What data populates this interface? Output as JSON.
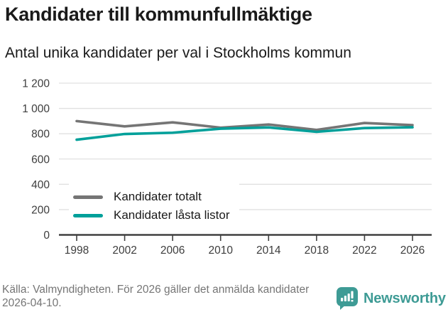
{
  "header": {
    "title": "Kandidater till kommunfullmäktige",
    "subtitle": "Antal unika kandidater per val i Stockholms kommun"
  },
  "chart_data": {
    "type": "line",
    "x": [
      1998,
      2002,
      2006,
      2010,
      2014,
      2018,
      2022,
      2026
    ],
    "xtick_labels": [
      "1998",
      "2002",
      "2006",
      "2010",
      "2014",
      "2018",
      "2022",
      "2026"
    ],
    "series": [
      {
        "name": "Kandidater totalt",
        "color": "#757575",
        "values": [
          900,
          858,
          890,
          848,
          873,
          830,
          885,
          868
        ]
      },
      {
        "name": "Kandidater låsta listor",
        "color": "#00A09A",
        "values": [
          753,
          798,
          808,
          840,
          850,
          815,
          845,
          851
        ]
      }
    ],
    "ylim": [
      0,
      1200
    ],
    "yticks": [
      0,
      200,
      400,
      600,
      800,
      1000,
      1200
    ],
    "ytick_labels": [
      "0",
      "200",
      "400",
      "600",
      "800",
      "1 000",
      "1 200"
    ],
    "grid": true,
    "legend_position": "inside-bottom-left",
    "title": "Kandidater till kommunfullmäktige",
    "xlabel": "",
    "ylabel": ""
  },
  "footer": {
    "source": "Källa: Valmyndigheten. För 2026 gäller det anmälda kandidater 2026-04-10.",
    "brand": "Newsworthy",
    "brand_color": "#3E9B95"
  },
  "colors": {
    "grid": "#e0e0e0",
    "axis": "#404040",
    "tick_label": "#3d3d3d",
    "footer_text": "#757575"
  }
}
